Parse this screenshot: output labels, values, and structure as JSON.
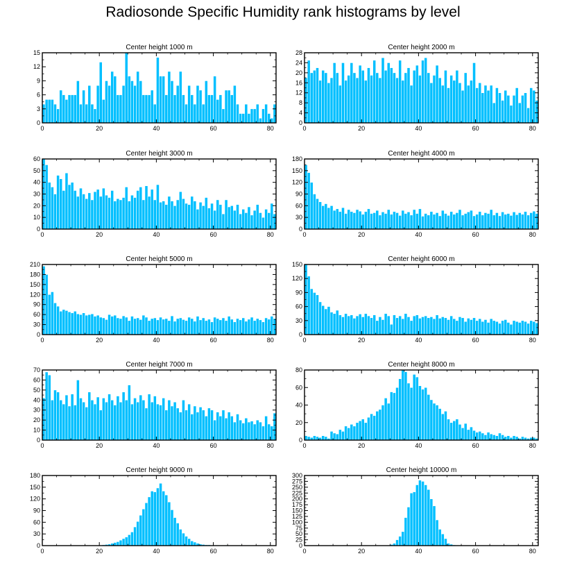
{
  "figure_title": "Radiosonde Specific Humidity rank histograms by level",
  "colors": {
    "bar": "#00bfff",
    "bar_edge": "#ffffff",
    "axis": "#000000"
  },
  "chart_data": [
    {
      "type": "bar",
      "title": "Center height 1000 m",
      "xlim": [
        0,
        82
      ],
      "ylim": [
        0,
        15
      ],
      "xticks": [
        0,
        20,
        40,
        60,
        80
      ],
      "yticks": [
        0,
        3,
        6,
        9,
        12,
        15
      ],
      "values": [
        4,
        5,
        5,
        5,
        4,
        3,
        7,
        6,
        5,
        6,
        6,
        6,
        9,
        4,
        7,
        4,
        8,
        4,
        3,
        8,
        13,
        5,
        9,
        8,
        11,
        10,
        6,
        6,
        8,
        15,
        10,
        9,
        8,
        11,
        9,
        6,
        6,
        6,
        7,
        4,
        14,
        10,
        10,
        6,
        11,
        9,
        6,
        8,
        11,
        6,
        4,
        8,
        6,
        4,
        8,
        7,
        4,
        9,
        6,
        6,
        10,
        5,
        6,
        3,
        7,
        7,
        6,
        8,
        4,
        2,
        2,
        4,
        2,
        3,
        3,
        4,
        1,
        3,
        4,
        2,
        1,
        4
      ]
    },
    {
      "type": "bar",
      "title": "Center height 2000 m",
      "xlim": [
        0,
        82
      ],
      "ylim": [
        0,
        28
      ],
      "xticks": [
        0,
        20,
        40,
        60,
        80
      ],
      "yticks": [
        0,
        4,
        8,
        12,
        16,
        20,
        24,
        28
      ],
      "values": [
        18,
        25,
        20,
        21,
        22,
        17,
        21,
        20,
        16,
        18,
        24,
        20,
        15,
        24,
        17,
        19,
        24,
        20,
        18,
        23,
        21,
        17,
        22,
        19,
        25,
        20,
        18,
        26,
        21,
        24,
        22,
        20,
        18,
        25,
        17,
        20,
        22,
        15,
        21,
        23,
        19,
        25,
        26,
        20,
        16,
        19,
        23,
        18,
        15,
        21,
        14,
        19,
        17,
        21,
        16,
        13,
        20,
        15,
        17,
        24,
        14,
        16,
        12,
        15,
        13,
        15,
        8,
        14,
        12,
        9,
        13,
        11,
        7,
        11,
        14,
        8,
        11,
        12,
        6,
        14,
        13,
        9
      ]
    },
    {
      "type": "bar",
      "title": "Center height 3000 m",
      "xlim": [
        0,
        82
      ],
      "ylim": [
        0,
        60
      ],
      "xticks": [
        0,
        20,
        40,
        60,
        80
      ],
      "yticks": [
        0,
        10,
        20,
        30,
        40,
        50,
        60
      ],
      "values": [
        60,
        55,
        40,
        36,
        30,
        46,
        43,
        33,
        48,
        38,
        40,
        33,
        28,
        35,
        30,
        26,
        31,
        25,
        32,
        34,
        28,
        35,
        29,
        27,
        33,
        24,
        26,
        25,
        27,
        36,
        24,
        29,
        27,
        33,
        36,
        25,
        37,
        28,
        34,
        25,
        38,
        23,
        24,
        21,
        28,
        24,
        20,
        25,
        32,
        26,
        22,
        21,
        28,
        24,
        17,
        23,
        20,
        27,
        18,
        22,
        16,
        25,
        21,
        13,
        25,
        19,
        20,
        16,
        21,
        13,
        17,
        14,
        19,
        12,
        16,
        21,
        14,
        10,
        17,
        14,
        22,
        13
      ]
    },
    {
      "type": "bar",
      "title": "Center height 4000 m",
      "xlim": [
        0,
        82
      ],
      "ylim": [
        0,
        180
      ],
      "xticks": [
        0,
        20,
        40,
        60,
        80
      ],
      "yticks": [
        0,
        30,
        60,
        90,
        120,
        150,
        180
      ],
      "values": [
        165,
        145,
        120,
        90,
        78,
        70,
        60,
        65,
        55,
        60,
        48,
        52,
        45,
        55,
        40,
        50,
        45,
        42,
        50,
        46,
        38,
        45,
        52,
        40,
        42,
        48,
        36,
        44,
        40,
        50,
        38,
        45,
        42,
        35,
        48,
        40,
        44,
        36,
        50,
        40,
        52,
        33,
        40,
        36,
        45,
        38,
        42,
        34,
        48,
        40,
        35,
        45,
        38,
        42,
        50,
        36,
        40,
        44,
        48,
        34,
        38,
        45,
        36,
        42,
        40,
        50,
        36,
        42,
        34,
        44,
        38,
        40,
        35,
        44,
        37,
        42,
        38,
        45,
        36,
        42,
        46,
        40
      ]
    },
    {
      "type": "bar",
      "title": "Center height 5000 m",
      "xlim": [
        0,
        82
      ],
      "ylim": [
        0,
        210
      ],
      "xticks": [
        0,
        20,
        40,
        60,
        80
      ],
      "yticks": [
        0,
        30,
        60,
        90,
        120,
        150,
        180,
        210
      ],
      "values": [
        205,
        180,
        120,
        128,
        95,
        85,
        70,
        75,
        72,
        68,
        65,
        70,
        62,
        60,
        65,
        58,
        60,
        62,
        55,
        58,
        52,
        50,
        45,
        60,
        55,
        58,
        50,
        48,
        56,
        52,
        42,
        55,
        48,
        50,
        45,
        58,
        52,
        42,
        48,
        50,
        44,
        52,
        46,
        48,
        42,
        56,
        40,
        48,
        50,
        45,
        42,
        52,
        48,
        40,
        55,
        44,
        50,
        42,
        46,
        38,
        52,
        48,
        44,
        50,
        42,
        55,
        46,
        38,
        48,
        44,
        50,
        40,
        46,
        52,
        42,
        48,
        44,
        38,
        50,
        46,
        55,
        48
      ]
    },
    {
      "type": "bar",
      "title": "Center height 6000 m",
      "xlim": [
        0,
        82
      ],
      "ylim": [
        0,
        150
      ],
      "xticks": [
        0,
        20,
        40,
        60,
        80
      ],
      "yticks": [
        0,
        30,
        60,
        90,
        120,
        150
      ],
      "values": [
        150,
        125,
        98,
        90,
        85,
        70,
        62,
        55,
        60,
        48,
        45,
        52,
        42,
        38,
        45,
        40,
        42,
        35,
        40,
        44,
        38,
        45,
        40,
        36,
        42,
        30,
        38,
        32,
        45,
        40,
        22,
        42,
        36,
        40,
        34,
        45,
        38,
        30,
        40,
        42,
        35,
        38,
        40,
        36,
        38,
        34,
        42,
        35,
        38,
        36,
        32,
        40,
        34,
        30,
        38,
        36,
        28,
        35,
        32,
        36,
        30,
        34,
        28,
        32,
        26,
        34,
        30,
        28,
        24,
        30,
        32,
        26,
        22,
        30,
        28,
        26,
        30,
        28,
        24,
        30,
        28,
        25
      ]
    },
    {
      "type": "bar",
      "title": "Center height 7000 m",
      "xlim": [
        0,
        82
      ],
      "ylim": [
        0,
        70
      ],
      "xticks": [
        0,
        20,
        40,
        60,
        80
      ],
      "yticks": [
        0,
        10,
        20,
        30,
        40,
        50,
        60,
        70
      ],
      "values": [
        42,
        68,
        65,
        40,
        50,
        48,
        40,
        36,
        45,
        34,
        46,
        35,
        60,
        42,
        38,
        33,
        48,
        40,
        36,
        43,
        30,
        42,
        38,
        46,
        40,
        35,
        44,
        38,
        48,
        40,
        55,
        36,
        42,
        38,
        45,
        40,
        32,
        46,
        38,
        44,
        36,
        35,
        42,
        30,
        40,
        34,
        38,
        32,
        28,
        40,
        30,
        36,
        26,
        34,
        28,
        33,
        30,
        24,
        32,
        30,
        20,
        28,
        24,
        30,
        22,
        28,
        24,
        18,
        26,
        20,
        17,
        22,
        18,
        19,
        16,
        20,
        18,
        14,
        24,
        16,
        14,
        27
      ]
    },
    {
      "type": "bar",
      "title": "Center height 8000 m",
      "xlim": [
        0,
        82
      ],
      "ylim": [
        0,
        80
      ],
      "xticks": [
        0,
        20,
        40,
        60,
        80
      ],
      "yticks": [
        0,
        20,
        40,
        60,
        80
      ],
      "values": [
        5,
        4,
        3,
        5,
        4,
        3,
        5,
        4,
        2,
        10,
        8,
        7,
        12,
        10,
        16,
        14,
        18,
        16,
        20,
        22,
        24,
        20,
        26,
        30,
        28,
        33,
        35,
        40,
        48,
        42,
        55,
        54,
        60,
        70,
        80,
        78,
        65,
        60,
        75,
        72,
        62,
        58,
        60,
        52,
        46,
        42,
        40,
        36,
        30,
        33,
        24,
        20,
        22,
        24,
        18,
        14,
        19,
        12,
        15,
        11,
        9,
        10,
        8,
        6,
        9,
        7,
        6,
        5,
        8,
        6,
        4,
        5,
        3,
        5,
        4,
        2,
        4,
        3,
        2,
        3,
        3,
        2
      ]
    },
    {
      "type": "bar",
      "title": "Center height 9000 m",
      "xlim": [
        0,
        82
      ],
      "ylim": [
        0,
        180
      ],
      "xticks": [
        0,
        20,
        40,
        60,
        80
      ],
      "yticks": [
        0,
        30,
        60,
        90,
        120,
        150,
        180
      ],
      "values": [
        0,
        0,
        0,
        0,
        0,
        0,
        0,
        0,
        0,
        0,
        0,
        0,
        0,
        0,
        0,
        0,
        0,
        0,
        0,
        0,
        0,
        2,
        3,
        4,
        6,
        8,
        10,
        14,
        18,
        22,
        28,
        35,
        48,
        62,
        78,
        94,
        110,
        125,
        140,
        138,
        148,
        160,
        140,
        130,
        112,
        92,
        72,
        58,
        42,
        32,
        24,
        18,
        12,
        9,
        6,
        4,
        3,
        2,
        2,
        1,
        1,
        1,
        0,
        0,
        1,
        0,
        0,
        0,
        0,
        1,
        0,
        0,
        1,
        0,
        0,
        0,
        0,
        0,
        0,
        0,
        0,
        0
      ]
    },
    {
      "type": "bar",
      "title": "Center height 10000 m",
      "xlim": [
        0,
        82
      ],
      "ylim": [
        0,
        300
      ],
      "xticks": [
        0,
        20,
        40,
        60,
        80
      ],
      "yticks": [
        0,
        25,
        50,
        75,
        100,
        125,
        150,
        175,
        200,
        225,
        250,
        275,
        300
      ],
      "values": [
        0,
        0,
        0,
        0,
        0,
        0,
        0,
        0,
        0,
        0,
        0,
        0,
        0,
        0,
        0,
        0,
        0,
        0,
        0,
        0,
        0,
        0,
        0,
        0,
        0,
        0,
        0,
        0,
        1,
        2,
        5,
        10,
        25,
        40,
        60,
        120,
        165,
        225,
        230,
        260,
        280,
        275,
        260,
        240,
        200,
        170,
        110,
        70,
        50,
        30,
        10,
        6,
        3,
        2,
        1,
        0,
        0,
        0,
        0,
        0,
        0,
        0,
        0,
        0,
        0,
        0,
        0,
        0,
        0,
        0,
        0,
        0,
        0,
        0,
        0,
        0,
        0,
        0,
        0,
        0,
        0,
        0
      ]
    }
  ]
}
